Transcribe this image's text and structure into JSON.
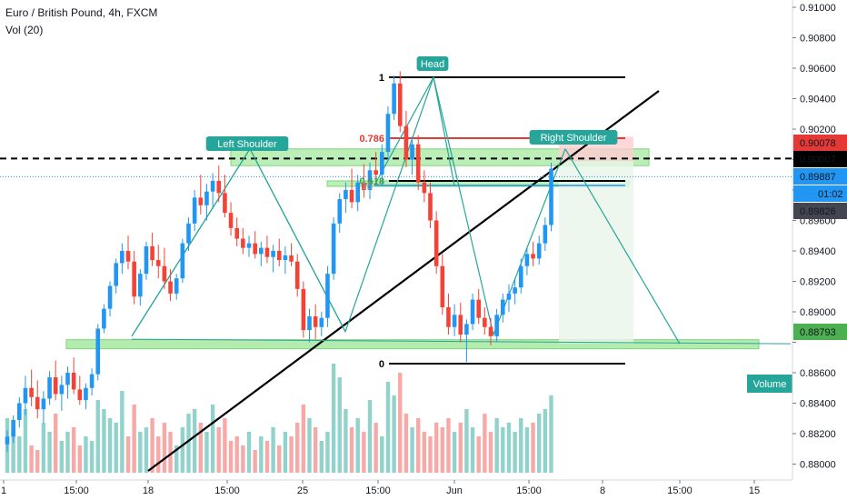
{
  "header": {
    "symbol_line": "Euro / British Pound, 4h, FXCM",
    "volume_line": "Vol (20)"
  },
  "chart_data": {
    "type": "candlestick",
    "ylim": [
      0.8778,
      0.9112
    ],
    "y_ticks": [
      "0.91000",
      "0.90800",
      "0.90600",
      "0.90400",
      "0.90200",
      "0.90000",
      "0.89800",
      "0.89600",
      "0.89400",
      "0.89200",
      "0.89000",
      "0.88800",
      "0.88600",
      "0.88400",
      "0.88200",
      "0.88000"
    ],
    "x_ticks": [
      "1",
      "15:00",
      "18",
      "15:00",
      "25",
      "15:00",
      "Jun",
      "15:00",
      "8",
      "15:00",
      "15"
    ],
    "candles": [
      [
        0.8813,
        0.8822,
        0.8808,
        0.8818
      ],
      [
        0.8818,
        0.8832,
        0.8814,
        0.8829
      ],
      [
        0.8829,
        0.8844,
        0.8824,
        0.884
      ],
      [
        0.884,
        0.8858,
        0.8832,
        0.885
      ],
      [
        0.885,
        0.8862,
        0.8838,
        0.8844
      ],
      [
        0.8844,
        0.8855,
        0.883,
        0.8836
      ],
      [
        0.8836,
        0.8848,
        0.8827,
        0.8843
      ],
      [
        0.8843,
        0.8861,
        0.8839,
        0.8857
      ],
      [
        0.8857,
        0.8868,
        0.8842,
        0.8846
      ],
      [
        0.8846,
        0.8858,
        0.8835,
        0.8852
      ],
      [
        0.8852,
        0.8864,
        0.8843,
        0.886
      ],
      [
        0.886,
        0.887,
        0.8846,
        0.8849
      ],
      [
        0.8849,
        0.8858,
        0.8839,
        0.8842
      ],
      [
        0.8842,
        0.8853,
        0.8836,
        0.885
      ],
      [
        0.885,
        0.8863,
        0.8845,
        0.8859
      ],
      [
        0.8859,
        0.8892,
        0.8855,
        0.8889
      ],
      [
        0.8889,
        0.8905,
        0.8886,
        0.8902
      ],
      [
        0.8902,
        0.892,
        0.8897,
        0.8917
      ],
      [
        0.8917,
        0.8935,
        0.8912,
        0.8932
      ],
      [
        0.8932,
        0.8945,
        0.8925,
        0.894
      ],
      [
        0.894,
        0.895,
        0.8928,
        0.8933
      ],
      [
        0.8933,
        0.894,
        0.8905,
        0.891
      ],
      [
        0.891,
        0.8928,
        0.8904,
        0.8925
      ],
      [
        0.8925,
        0.8946,
        0.8921,
        0.8943
      ],
      [
        0.8943,
        0.8952,
        0.893,
        0.8934
      ],
      [
        0.8934,
        0.8944,
        0.8922,
        0.893
      ],
      [
        0.893,
        0.8942,
        0.8915,
        0.892
      ],
      [
        0.892,
        0.8928,
        0.8907,
        0.8912
      ],
      [
        0.8912,
        0.8925,
        0.8908,
        0.8922
      ],
      [
        0.8922,
        0.8948,
        0.8919,
        0.8945
      ],
      [
        0.8945,
        0.8962,
        0.894,
        0.8958
      ],
      [
        0.8958,
        0.898,
        0.8953,
        0.8975
      ],
      [
        0.8975,
        0.899,
        0.8964,
        0.897
      ],
      [
        0.897,
        0.8984,
        0.896,
        0.8979
      ],
      [
        0.8979,
        0.8991,
        0.8969,
        0.8986
      ],
      [
        0.8986,
        0.8996,
        0.8972,
        0.8978
      ],
      [
        0.8978,
        0.899,
        0.8962,
        0.8965
      ],
      [
        0.8965,
        0.8972,
        0.895,
        0.8955
      ],
      [
        0.8955,
        0.8962,
        0.8943,
        0.8948
      ],
      [
        0.8948,
        0.8955,
        0.8938,
        0.8942
      ],
      [
        0.8942,
        0.895,
        0.8936,
        0.8945
      ],
      [
        0.8945,
        0.8953,
        0.8935,
        0.8938
      ],
      [
        0.8938,
        0.8946,
        0.893,
        0.8942
      ],
      [
        0.8942,
        0.895,
        0.8932,
        0.8936
      ],
      [
        0.8936,
        0.8944,
        0.8926,
        0.894
      ],
      [
        0.894,
        0.8948,
        0.893,
        0.8934
      ],
      [
        0.8934,
        0.8943,
        0.8925,
        0.8937
      ],
      [
        0.8937,
        0.8945,
        0.893,
        0.8933
      ],
      [
        0.8933,
        0.8938,
        0.891,
        0.8915
      ],
      [
        0.8915,
        0.892,
        0.8883,
        0.8888
      ],
      [
        0.8888,
        0.8902,
        0.888,
        0.8897
      ],
      [
        0.8897,
        0.8905,
        0.8882,
        0.889
      ],
      [
        0.889,
        0.89,
        0.8884,
        0.8896
      ],
      [
        0.8896,
        0.893,
        0.889,
        0.8925
      ],
      [
        0.8925,
        0.8962,
        0.8921,
        0.8958
      ],
      [
        0.8958,
        0.8978,
        0.8952,
        0.8974
      ],
      [
        0.8974,
        0.8985,
        0.8965,
        0.898
      ],
      [
        0.898,
        0.8994,
        0.8968,
        0.8972
      ],
      [
        0.8972,
        0.899,
        0.8966,
        0.8985
      ],
      [
        0.8985,
        0.8997,
        0.8975,
        0.898
      ],
      [
        0.898,
        0.8998,
        0.8974,
        0.8993
      ],
      [
        0.8993,
        0.9005,
        0.8985,
        0.899
      ],
      [
        0.899,
        0.901,
        0.8984,
        0.9005
      ],
      [
        0.9005,
        0.9035,
        0.9,
        0.903
      ],
      [
        0.903,
        0.9055,
        0.9026,
        0.905
      ],
      [
        0.905,
        0.9058,
        0.9018,
        0.9022
      ],
      [
        0.9022,
        0.9032,
        0.8995,
        0.9
      ],
      [
        0.9,
        0.9015,
        0.899,
        0.901
      ],
      [
        0.901,
        0.9016,
        0.898,
        0.8985
      ],
      [
        0.8985,
        0.8993,
        0.8972,
        0.8978
      ],
      [
        0.8978,
        0.8985,
        0.8955,
        0.896
      ],
      [
        0.896,
        0.8966,
        0.8925,
        0.893
      ],
      [
        0.893,
        0.8938,
        0.8898,
        0.8903
      ],
      [
        0.8903,
        0.8912,
        0.8885,
        0.889
      ],
      [
        0.889,
        0.8905,
        0.8884,
        0.8898
      ],
      [
        0.8898,
        0.8906,
        0.888,
        0.8885
      ],
      [
        0.8885,
        0.8895,
        0.8867,
        0.8892
      ],
      [
        0.8892,
        0.8912,
        0.8888,
        0.8908
      ],
      [
        0.8908,
        0.8915,
        0.8892,
        0.8896
      ],
      [
        0.8896,
        0.8903,
        0.8885,
        0.889
      ],
      [
        0.889,
        0.8896,
        0.8878,
        0.8884
      ],
      [
        0.8884,
        0.8902,
        0.888,
        0.8898
      ],
      [
        0.8898,
        0.8912,
        0.8893,
        0.8908
      ],
      [
        0.8908,
        0.8918,
        0.89,
        0.8912
      ],
      [
        0.8912,
        0.8922,
        0.8905,
        0.8916
      ],
      [
        0.8916,
        0.8935,
        0.8912,
        0.893
      ],
      [
        0.893,
        0.8942,
        0.8924,
        0.8938
      ],
      [
        0.8938,
        0.8946,
        0.893,
        0.8935
      ],
      [
        0.8935,
        0.895,
        0.8931,
        0.8945
      ],
      [
        0.8945,
        0.8962,
        0.894,
        0.8957
      ],
      [
        0.8957,
        0.8998,
        0.8953,
        0.8994
      ]
    ],
    "volume": [
      12,
      10,
      8,
      14,
      6,
      5,
      11,
      9,
      13,
      7,
      9,
      10,
      6,
      8,
      7,
      16,
      14,
      12,
      11,
      18,
      8,
      15,
      9,
      10,
      12,
      8,
      11,
      9,
      6,
      10,
      13,
      14,
      11,
      9,
      15,
      10,
      12,
      7,
      8,
      6,
      9,
      5,
      8,
      7,
      10,
      6,
      9,
      8,
      11,
      15,
      12,
      10,
      7,
      9,
      24,
      21,
      14,
      10,
      12,
      9,
      16,
      11,
      8,
      20,
      17,
      22,
      13,
      10,
      12,
      9,
      8,
      11,
      10,
      12,
      9,
      11,
      14,
      10,
      8,
      13,
      9,
      12,
      10,
      11,
      9,
      12,
      10,
      11,
      13,
      14,
      17
    ],
    "levels": {
      "neckline": 0.88793,
      "shoulder_zone": [
        0.8996,
        0.9007
      ],
      "mid_zone": [
        0.8983,
        0.8986
      ]
    },
    "fib": [
      {
        "label": "1",
        "value": 0.9054
      },
      {
        "label": "0.786",
        "value": 0.9014
      },
      {
        "label": "0.618",
        "value": 0.8986
      },
      {
        "label": "0",
        "value": 0.8866
      }
    ],
    "pattern_points": [
      0.8884,
      0.9007,
      0.8887,
      0.9054,
      0.8885,
      0.9007
    ],
    "annotations": {
      "left_shoulder": "Left Shoulder",
      "head": "Head",
      "right_shoulder": "Right Shoulder",
      "fib_prefix": "15"
    },
    "price_labels": [
      {
        "value": "0.90078",
        "color": "#e53935"
      },
      {
        "value": "0.90007",
        "color": "#000000"
      },
      {
        "value": "0.89887",
        "color": "#2196f3"
      },
      {
        "value": "01:02",
        "color": "#2196f3"
      },
      {
        "value": "0.89826",
        "color": "#434651"
      },
      {
        "value": "0.88793",
        "color": "#4caf50"
      }
    ],
    "volume_label": "Volume",
    "colors": {
      "up": "#26a69a",
      "down": "#ef5350",
      "up_candle": "#2196f3",
      "down_candle": "#f44336",
      "zone": "#a6e9a0",
      "neckline": "#a6e9a0",
      "pattern": "#26a69a",
      "fib_786": "#e53935",
      "fib_618": "#43a047",
      "volume_badge": "#26a69a"
    }
  }
}
